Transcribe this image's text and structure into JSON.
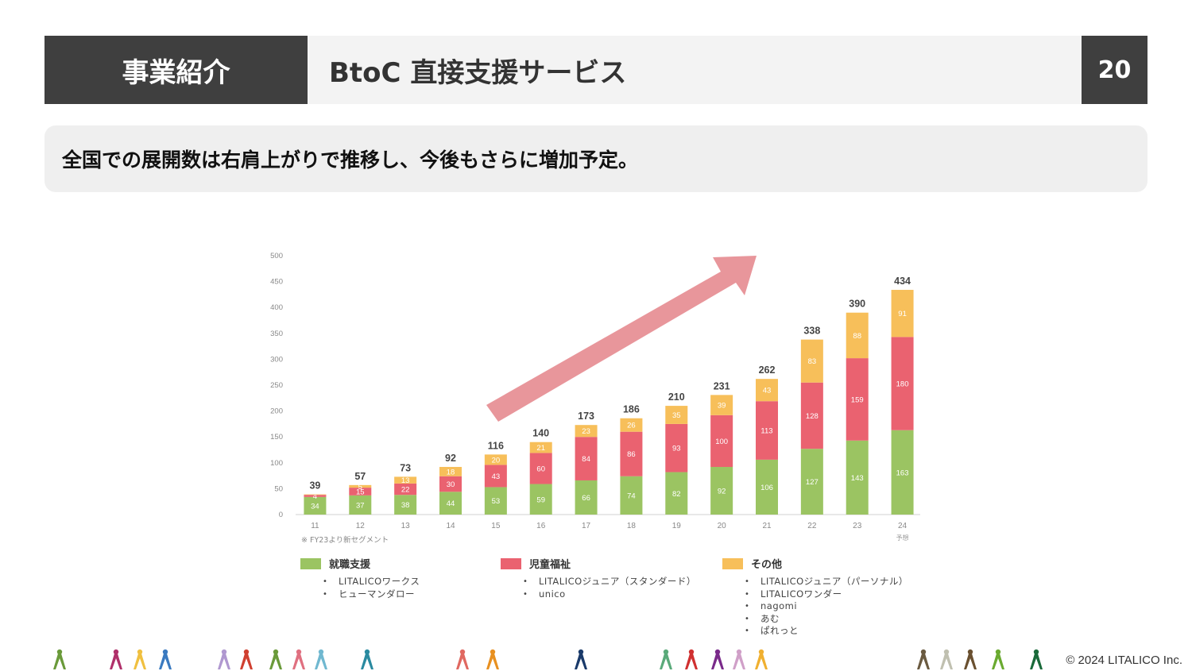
{
  "header": {
    "section": "事業紹介",
    "title": "BtoC 直接支援サービス",
    "page_number": "20"
  },
  "headline": "全国での展開数は右肩上がりで推移し、今後もさらに増加予定。",
  "chart_data": {
    "type": "bar",
    "stacked": true,
    "categories": [
      "11",
      "12",
      "13",
      "14",
      "15",
      "16",
      "17",
      "18",
      "19",
      "20",
      "21",
      "22",
      "23",
      "24"
    ],
    "category_sub_labels": {
      "24": "予想"
    },
    "series": [
      {
        "name": "就職支援",
        "color": "#9bc462",
        "values": [
          34,
          37,
          38,
          44,
          53,
          59,
          66,
          74,
          82,
          92,
          106,
          127,
          143,
          163
        ]
      },
      {
        "name": "児童福祉",
        "color": "#ea6270",
        "values": [
          4,
          15,
          22,
          30,
          43,
          60,
          84,
          86,
          93,
          100,
          113,
          128,
          159,
          180
        ]
      },
      {
        "name": "その他",
        "color": "#f7bf5a",
        "values": [
          1,
          5,
          13,
          18,
          20,
          21,
          23,
          26,
          35,
          39,
          43,
          83,
          88,
          91
        ]
      }
    ],
    "segment_labels_shown": [
      [
        true,
        true,
        true,
        true,
        true,
        true,
        true,
        true,
        true,
        true,
        true,
        true,
        true,
        true
      ],
      [
        true,
        true,
        true,
        true,
        true,
        true,
        true,
        true,
        true,
        true,
        true,
        true,
        true,
        true
      ],
      [
        false,
        true,
        true,
        true,
        true,
        true,
        true,
        true,
        true,
        true,
        true,
        true,
        true,
        true
      ]
    ],
    "totals": [
      39,
      57,
      73,
      92,
      116,
      140,
      173,
      186,
      210,
      231,
      262,
      338,
      390,
      434
    ],
    "yticks": [
      0,
      50,
      100,
      150,
      200,
      250,
      300,
      350,
      400,
      450,
      500
    ],
    "ylim": [
      0,
      500
    ],
    "footnote": "※ FY23より新セグメント",
    "trend_arrow": true,
    "colors": {
      "arrow": "#e8969b"
    }
  },
  "legend": [
    {
      "label": "就職支援",
      "color": "#9bc462",
      "items": [
        "LITALICOワークス",
        "ヒューマンダロー"
      ]
    },
    {
      "label": "児童福祉",
      "color": "#ea6270",
      "items": [
        "LITALICOジュニア（スタンダード）",
        "unico"
      ]
    },
    {
      "label": "その他",
      "color": "#f7bf5a",
      "items": [
        "LITALICOジュニア（パーソナル）",
        "LITALICOワンダー",
        "nagomi",
        "あむ",
        "ぱれっと"
      ]
    }
  ],
  "footer": {
    "copyright": "© 2024 LITALICO Inc.",
    "icon_colors": [
      "#6a9a3a",
      "#b0306a",
      "#f0c040",
      "#3a7ac0",
      "#b098d0",
      "#d04030",
      "#6a9a3a",
      "#e07080",
      "#70b8d0",
      "#2a8aa0",
      "#e06860",
      "#e89020",
      "#1a3a6a",
      "#5aaa7a",
      "#d03030",
      "#7a2a8a",
      "#d0a0c8",
      "#f0b030",
      "#6a5a40",
      "#c0c0b0",
      "#6a5030",
      "#6aaa30",
      "#1a6a3a"
    ]
  }
}
